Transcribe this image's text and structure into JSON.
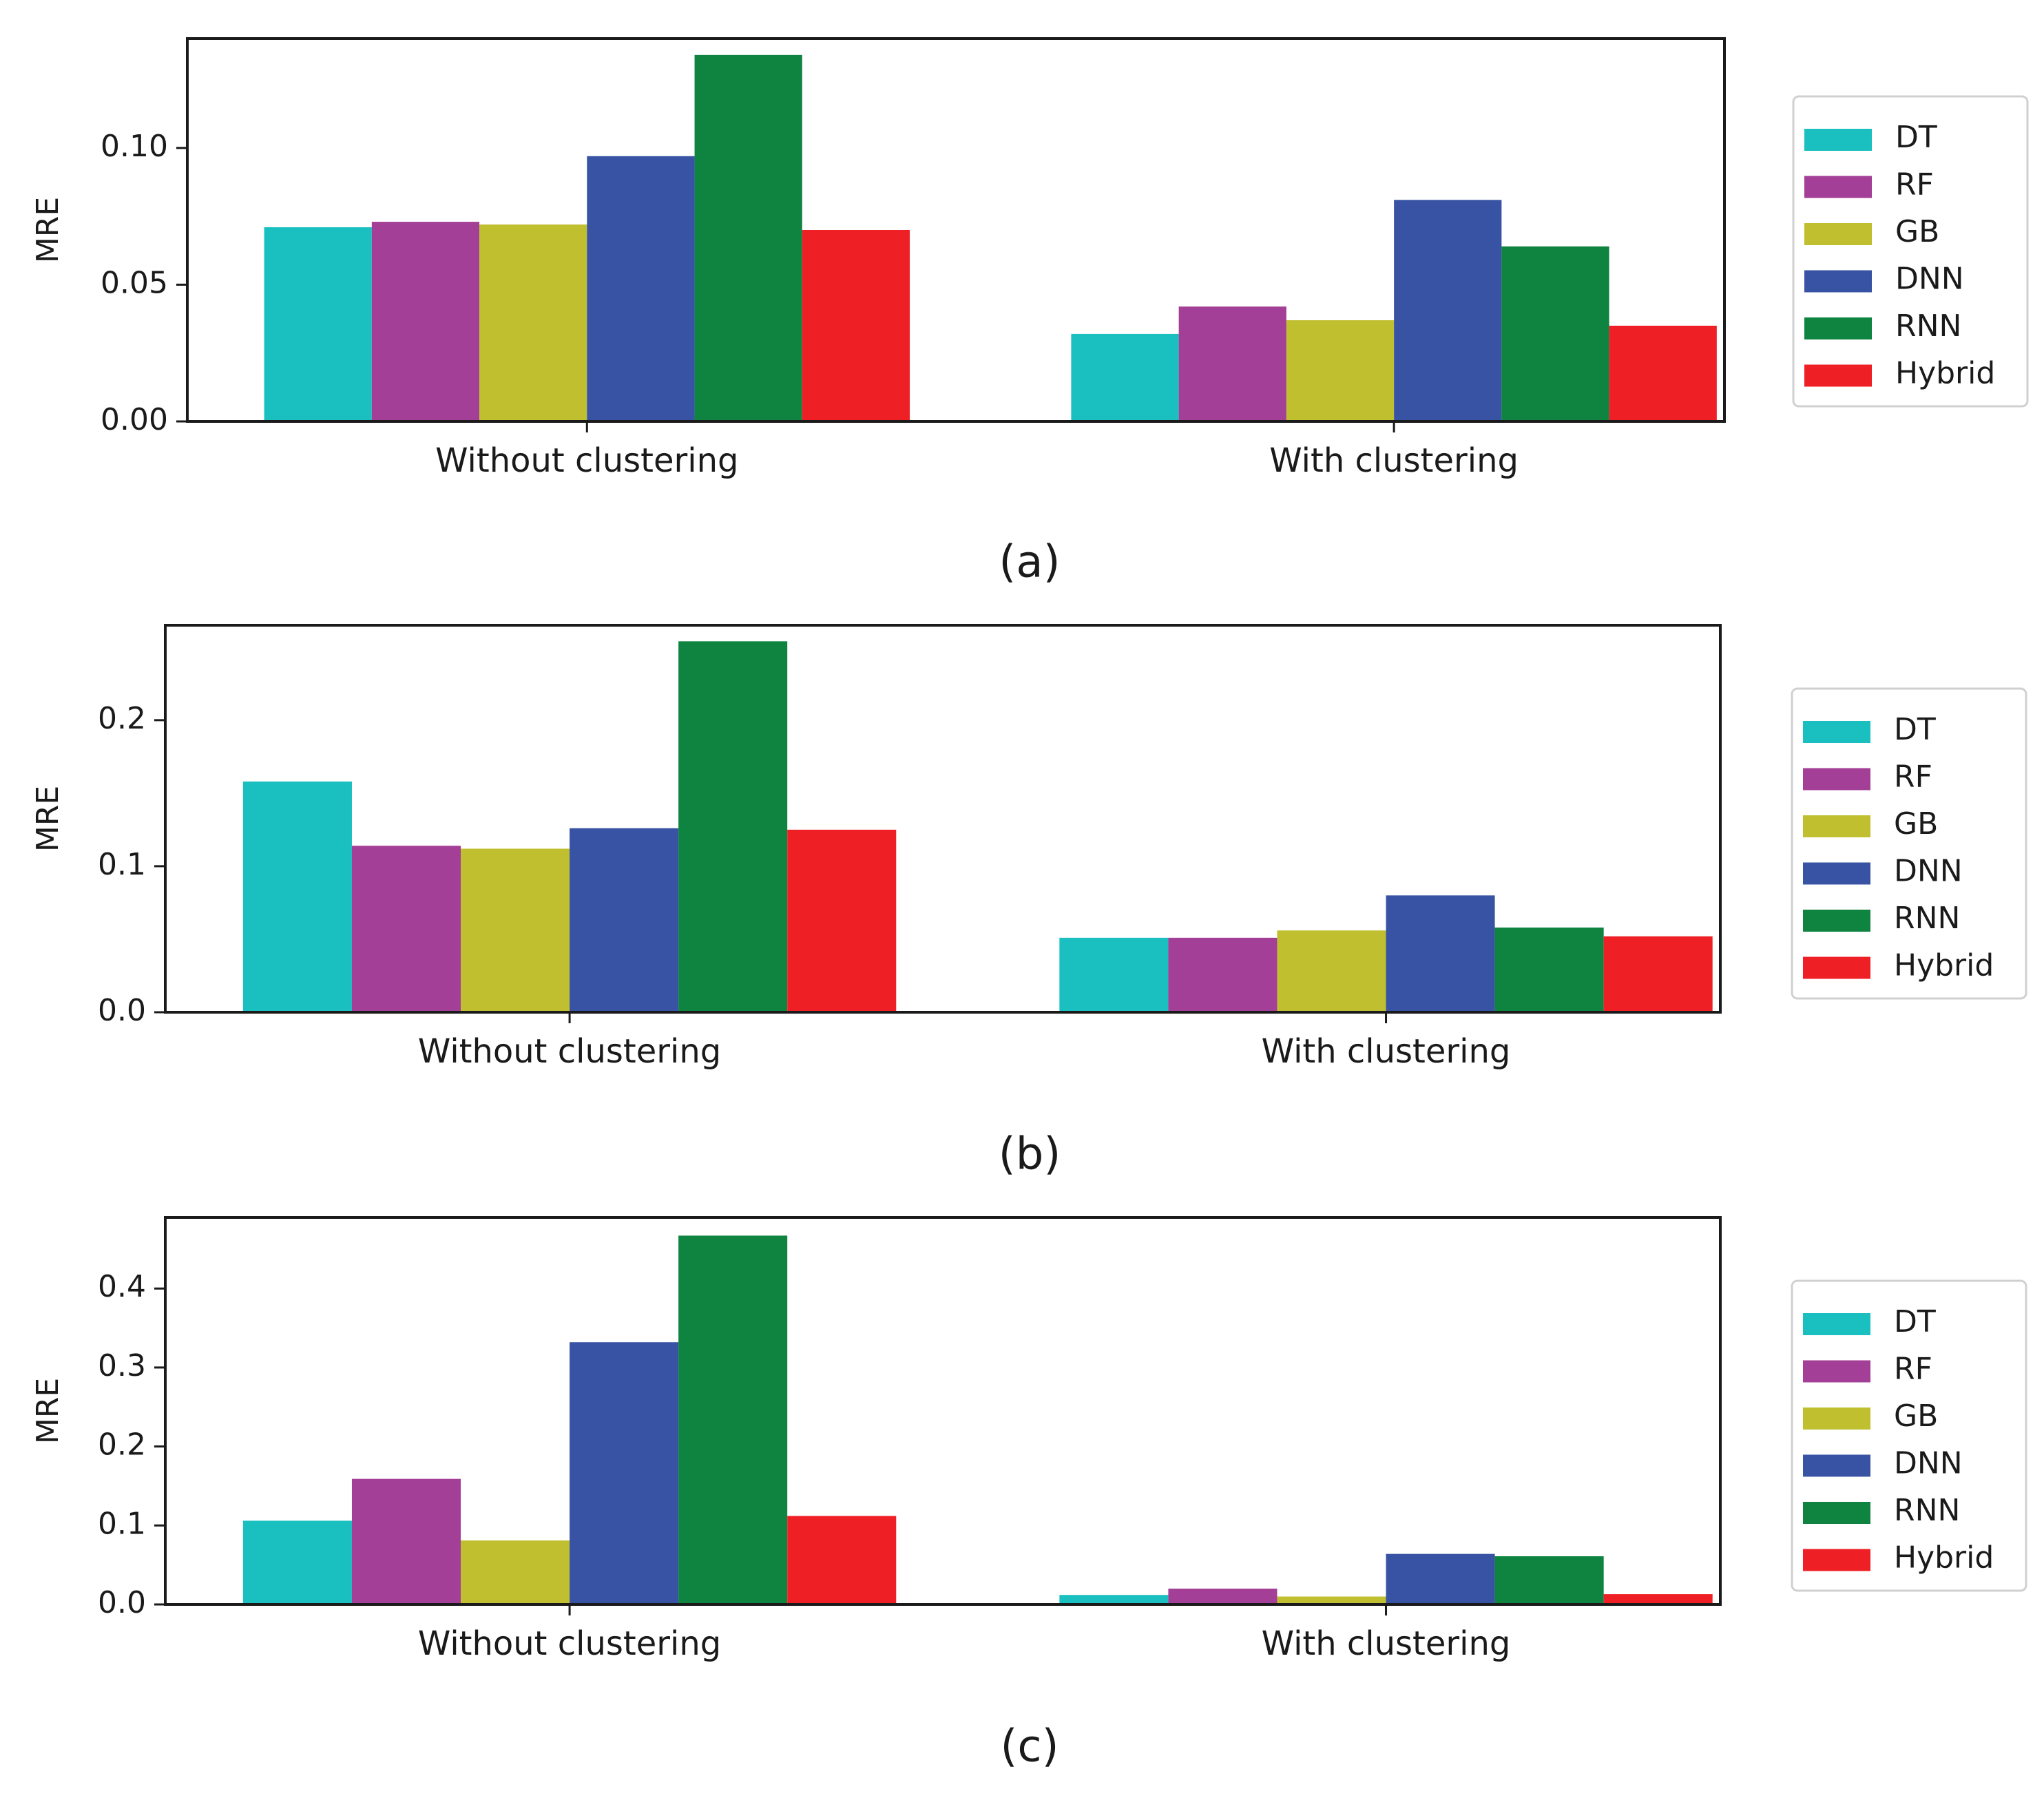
{
  "chart_data": [
    {
      "type": "bar",
      "caption": "(a)",
      "ylabel": "MRE",
      "categories": [
        "Without clustering",
        "With clustering"
      ],
      "ylim": [
        0,
        0.14
      ],
      "yticks": [
        0.0,
        0.05,
        0.1
      ],
      "ytick_labels": [
        "0.00",
        "0.05",
        "0.10"
      ],
      "series": [
        {
          "name": "DT",
          "values": [
            0.071,
            0.032
          ]
        },
        {
          "name": "RF",
          "values": [
            0.073,
            0.042
          ]
        },
        {
          "name": "GB",
          "values": [
            0.072,
            0.037
          ]
        },
        {
          "name": "DNN",
          "values": [
            0.097,
            0.081
          ]
        },
        {
          "name": "RNN",
          "values": [
            0.134,
            0.064
          ]
        },
        {
          "name": "Hybrid",
          "values": [
            0.07,
            0.035
          ]
        }
      ],
      "legend": "right"
    },
    {
      "type": "bar",
      "caption": "(b)",
      "ylabel": "MRE",
      "categories": [
        "Without clustering",
        "With clustering"
      ],
      "ylim": [
        0,
        0.265
      ],
      "yticks": [
        0.0,
        0.1,
        0.2
      ],
      "ytick_labels": [
        "0.0",
        "0.1",
        "0.2"
      ],
      "series": [
        {
          "name": "DT",
          "values": [
            0.158,
            0.051
          ]
        },
        {
          "name": "RF",
          "values": [
            0.114,
            0.051
          ]
        },
        {
          "name": "GB",
          "values": [
            0.112,
            0.056
          ]
        },
        {
          "name": "DNN",
          "values": [
            0.126,
            0.08
          ]
        },
        {
          "name": "RNN",
          "values": [
            0.254,
            0.058
          ]
        },
        {
          "name": "Hybrid",
          "values": [
            0.125,
            0.052
          ]
        }
      ],
      "legend": "right"
    },
    {
      "type": "bar",
      "caption": "(c)",
      "ylabel": "MRE",
      "categories": [
        "Without clustering",
        "With clustering"
      ],
      "ylim": [
        0,
        0.49
      ],
      "yticks": [
        0.0,
        0.1,
        0.2,
        0.3,
        0.4
      ],
      "ytick_labels": [
        "0.0",
        "0.1",
        "0.2",
        "0.3",
        "0.4"
      ],
      "series": [
        {
          "name": "DT",
          "values": [
            0.106,
            0.012
          ]
        },
        {
          "name": "RF",
          "values": [
            0.159,
            0.02
          ]
        },
        {
          "name": "GB",
          "values": [
            0.081,
            0.01
          ]
        },
        {
          "name": "DNN",
          "values": [
            0.332,
            0.064
          ]
        },
        {
          "name": "RNN",
          "values": [
            0.467,
            0.061
          ]
        },
        {
          "name": "Hybrid",
          "values": [
            0.112,
            0.013
          ]
        }
      ],
      "legend": "right"
    }
  ],
  "colors": {
    "DT": "#1abfbf",
    "RF": "#a33f96",
    "GB": "#bfbf30",
    "DNN": "#3853a3",
    "RNN": "#0f8340",
    "Hybrid": "#ee1f25"
  }
}
